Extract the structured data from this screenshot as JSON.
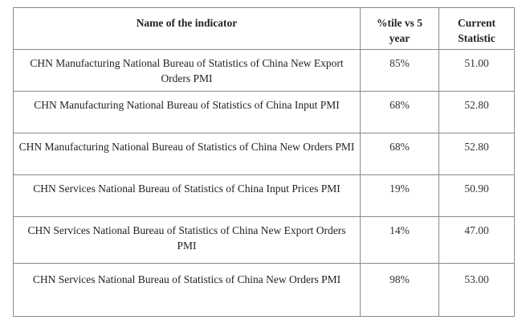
{
  "table": {
    "headers": {
      "name": "Name of the indicator",
      "percentile": "%tile vs 5 year",
      "current": "Current Statistic"
    },
    "rows": [
      {
        "name": "CHN Manufacturing National Bureau of Statistics of China New Export Orders PMI",
        "percentile": "85%",
        "current": "51.00"
      },
      {
        "name": "CHN Manufacturing National Bureau of Statistics of China Input PMI",
        "percentile": "68%",
        "current": "52.80"
      },
      {
        "name": "CHN Manufacturing National Bureau of Statistics of China New Orders PMI",
        "percentile": "68%",
        "current": "52.80"
      },
      {
        "name": "CHN Services National Bureau of Statistics of China Input Prices PMI",
        "percentile": "19%",
        "current": "50.90"
      },
      {
        "name": "CHN Services National Bureau of Statistics of China New Export Orders PMI",
        "percentile": "14%",
        "current": "47.00"
      },
      {
        "name": "CHN Services National Bureau of Statistics of China New Orders PMI",
        "percentile": "98%",
        "current": "53.00"
      }
    ]
  }
}
